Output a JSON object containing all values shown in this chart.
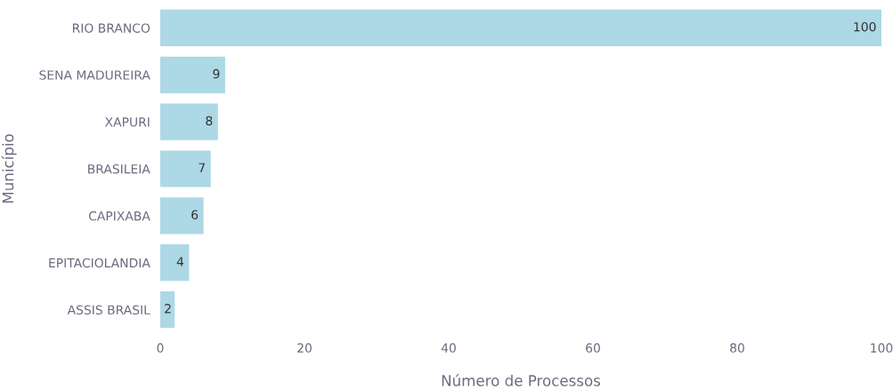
{
  "chart_data": {
    "type": "bar",
    "orientation": "horizontal",
    "xlabel": "Número de Processos",
    "ylabel": "Município",
    "categories": [
      "RIO BRANCO",
      "SENA MADUREIRA",
      "XAPURI",
      "BRASILEIA",
      "CAPIXABA",
      "EPITACIOLANDIA",
      "ASSIS BRASIL"
    ],
    "values": [
      100,
      9,
      8,
      7,
      6,
      4,
      2
    ],
    "color": "#add8e6",
    "xlim": [
      0,
      100
    ],
    "xticks": [
      0,
      20,
      40,
      60,
      80,
      100
    ],
    "data_labels": true,
    "grid": false,
    "legend": false
  }
}
